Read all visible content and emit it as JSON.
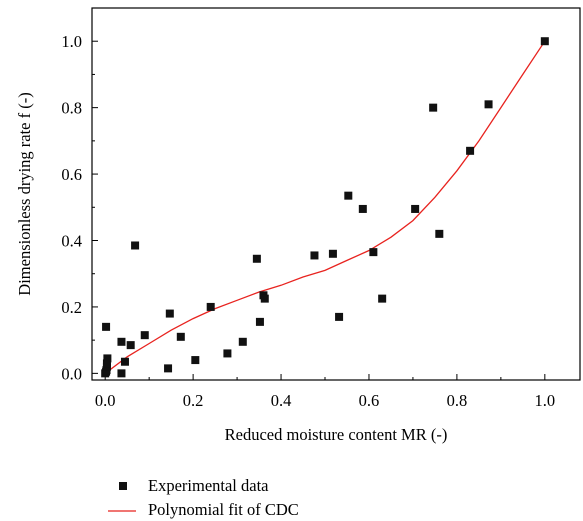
{
  "chart_data": {
    "type": "scatter",
    "xlabel": "Reduced moisture content MR (-)",
    "ylabel": "Dimensionless drying rate f (-)",
    "xlim": [
      -0.03,
      1.08
    ],
    "ylim": [
      -0.02,
      1.1
    ],
    "x_ticks": [
      "0.0",
      "0.2",
      "0.4",
      "0.6",
      "0.8",
      "1.0"
    ],
    "y_ticks": [
      "0.0",
      "0.2",
      "0.4",
      "0.6",
      "0.8",
      "1.0"
    ],
    "grid": false,
    "legend_position": "bottom-left, below plot",
    "series": [
      {
        "name": "Experimental data",
        "kind": "scatter",
        "color": "#111111",
        "points": [
          [
            0.0,
            0.0
          ],
          [
            0.002,
            0.005
          ],
          [
            0.003,
            0.01
          ],
          [
            0.004,
            0.02
          ],
          [
            0.004,
            0.03
          ],
          [
            0.005,
            0.045
          ],
          [
            0.002,
            0.14
          ],
          [
            0.037,
            0.0
          ],
          [
            0.037,
            0.095
          ],
          [
            0.045,
            0.035
          ],
          [
            0.058,
            0.085
          ],
          [
            0.068,
            0.385
          ],
          [
            0.09,
            0.115
          ],
          [
            0.143,
            0.015
          ],
          [
            0.147,
            0.18
          ],
          [
            0.172,
            0.11
          ],
          [
            0.205,
            0.04
          ],
          [
            0.24,
            0.2
          ],
          [
            0.278,
            0.06
          ],
          [
            0.313,
            0.095
          ],
          [
            0.345,
            0.345
          ],
          [
            0.352,
            0.155
          ],
          [
            0.36,
            0.235
          ],
          [
            0.363,
            0.225
          ],
          [
            0.476,
            0.355
          ],
          [
            0.518,
            0.36
          ],
          [
            0.532,
            0.17
          ],
          [
            0.553,
            0.535
          ],
          [
            0.586,
            0.495
          ],
          [
            0.61,
            0.365
          ],
          [
            0.63,
            0.225
          ],
          [
            0.705,
            0.495
          ],
          [
            0.746,
            0.8
          ],
          [
            0.76,
            0.42
          ],
          [
            0.83,
            0.67
          ],
          [
            0.872,
            0.81
          ],
          [
            1.0,
            1.0
          ]
        ]
      },
      {
        "name": "Polynomial fit of CDC",
        "kind": "line",
        "color": "#e8231f",
        "x": [
          0.0,
          0.05,
          0.1,
          0.15,
          0.2,
          0.25,
          0.3,
          0.35,
          0.4,
          0.45,
          0.5,
          0.55,
          0.6,
          0.65,
          0.7,
          0.75,
          0.8,
          0.85,
          0.9,
          0.95,
          1.0
        ],
        "y": [
          0.0,
          0.05,
          0.09,
          0.13,
          0.165,
          0.195,
          0.22,
          0.245,
          0.265,
          0.29,
          0.31,
          0.34,
          0.37,
          0.41,
          0.46,
          0.53,
          0.61,
          0.7,
          0.8,
          0.9,
          1.0
        ]
      }
    ]
  }
}
